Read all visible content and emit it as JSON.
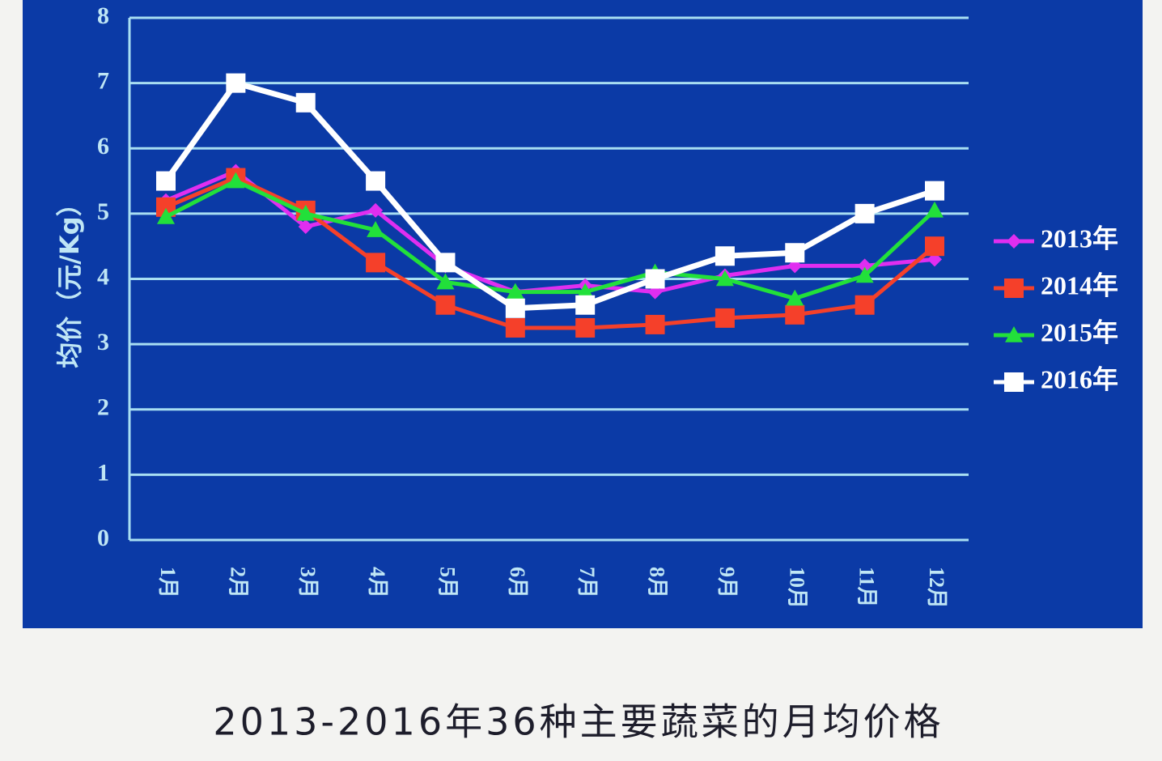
{
  "chart_data": {
    "type": "line",
    "title": "2013-2016年36种主要蔬菜的月均价格",
    "y_label": "均价（元/Kg）",
    "categories": [
      "1月",
      "2月",
      "3月",
      "4月",
      "5月",
      "6月",
      "7月",
      "8月",
      "9月",
      "10月",
      "11月",
      "12月"
    ],
    "series": [
      {
        "name": "2013年",
        "color": "#e02ef0",
        "marker": "diamond",
        "values": [
          5.2,
          5.65,
          4.8,
          5.05,
          4.2,
          3.8,
          3.9,
          3.8,
          4.05,
          4.2,
          4.2,
          4.3
        ]
      },
      {
        "name": "2014年",
        "color": "#f5402a",
        "marker": "square",
        "values": [
          5.1,
          5.55,
          5.05,
          4.25,
          3.6,
          3.25,
          3.25,
          3.3,
          3.4,
          3.45,
          3.6,
          4.5
        ]
      },
      {
        "name": "2015年",
        "color": "#22e03a",
        "marker": "triangle",
        "values": [
          4.95,
          5.5,
          5.0,
          4.75,
          3.95,
          3.8,
          3.8,
          4.1,
          4.0,
          3.7,
          4.05,
          5.05
        ]
      },
      {
        "name": "2016年",
        "color": "#ffffff",
        "marker": "square",
        "values": [
          5.5,
          7.0,
          6.7,
          5.5,
          4.25,
          3.55,
          3.6,
          4.0,
          4.35,
          4.4,
          5.0,
          5.35
        ]
      }
    ],
    "ylim": [
      0,
      8
    ],
    "yticks": [
      0,
      1,
      2,
      3,
      4,
      5,
      6,
      7,
      8
    ],
    "grid": true,
    "legend": "right"
  }
}
